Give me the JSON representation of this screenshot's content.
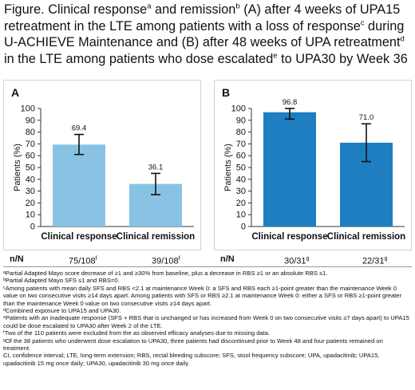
{
  "title": {
    "seg1": "Figure. Clinical response",
    "sup1": "a",
    "seg2": " and remission",
    "sup2": "b",
    "seg3": " (A) after 4 weeks of UPA15 retreatment in the LTE among patients with a loss of response",
    "sup3": "c",
    "seg4": " during U-ACHIEVE Maintenance and (B) after 48 weeks of UPA retreatment",
    "sup4": "d",
    "seg5": " in the LTE among patients who dose escalated",
    "sup5": "e",
    "seg6": " to UPA30 by Week 36"
  },
  "colors": {
    "panel_a_bar": "#89c3e3",
    "panel_b_bar": "#1f7ec1",
    "error_bar": "#111111"
  },
  "nn_label": "n/N",
  "chart_data": [
    {
      "panel": "A",
      "type": "bar",
      "ylabel": "Patients (%)",
      "ylim": [
        0,
        100
      ],
      "yticks": [
        0,
        10,
        20,
        30,
        40,
        50,
        60,
        70,
        80,
        90,
        100
      ],
      "categories": [
        "Clinical response",
        "Clinical remission"
      ],
      "values": [
        69.4,
        36.1
      ],
      "value_labels": [
        "69.4",
        "36.1"
      ],
      "error_low": [
        61,
        27
      ],
      "error_high": [
        78,
        45
      ],
      "nn": [
        "75/108",
        "39/108"
      ],
      "nn_sup": [
        "f",
        "f"
      ]
    },
    {
      "panel": "B",
      "type": "bar",
      "ylabel": "Patients (%)",
      "ylim": [
        0,
        100
      ],
      "yticks": [
        0,
        10,
        20,
        30,
        40,
        50,
        60,
        70,
        80,
        90,
        100
      ],
      "categories": [
        "Clinical response",
        "Clinical remission"
      ],
      "values": [
        96.8,
        71.0
      ],
      "value_labels": [
        "96.8",
        "71.0"
      ],
      "error_low": [
        91,
        55
      ],
      "error_high": [
        100,
        87
      ],
      "nn": [
        "30/31",
        "22/31"
      ],
      "nn_sup": [
        "g",
        "g"
      ]
    }
  ],
  "footnotes": [
    "ᵃPartial Adapted Mayo score decrease of ≥1 and ≥30% from baseline, plus a decrease in RBS ≥1 or an absolute RBS ≤1.",
    "ᵇPartial Adapted Mayo SFS ≤1 and RBS=0.",
    "ᶜAmong patients with mean daily SFS and RBS <2.1 at maintenance Week 0: a SFS and RBS each ≥1-point greater than the maintenance Week 0 value on two consecutive visits ≥14 days apart. Among patients with SFS or RBS ≥2.1 at maintenance Week 0: either a SFS or RBS ≥1-point greater than the maintenance Week 0 value on two consecutive visits ≥14 days apart.",
    "ᵈCombined exposure to UPA15 and UPA30.",
    "ᵉPatients with an inadequate response (SFS + RBS that is unchanged or has increased from Week 0 on two consecutive visits ≥7 days apart) to UPA15 could be dose escalated to UPA30 after Week 2 of the LTE.",
    "ᶠTwo of the 110 patients were excluded from the as observed efficacy analyses due to missing data.",
    "ᵍOf the 38 patients who underwent dose escalation to UPA30, three patients had discontinued prior to Week 48 and four patients remained on treatment.",
    "CI, confidence interval; LTE, long-term extension; RBS, rectal bleeding subscore; SFS, stool frequency subscore; UPA, upadacitinib; UPA15, upadacitinib 15 mg once daily; UPA30, upadacitinib 30 mg once daily."
  ]
}
